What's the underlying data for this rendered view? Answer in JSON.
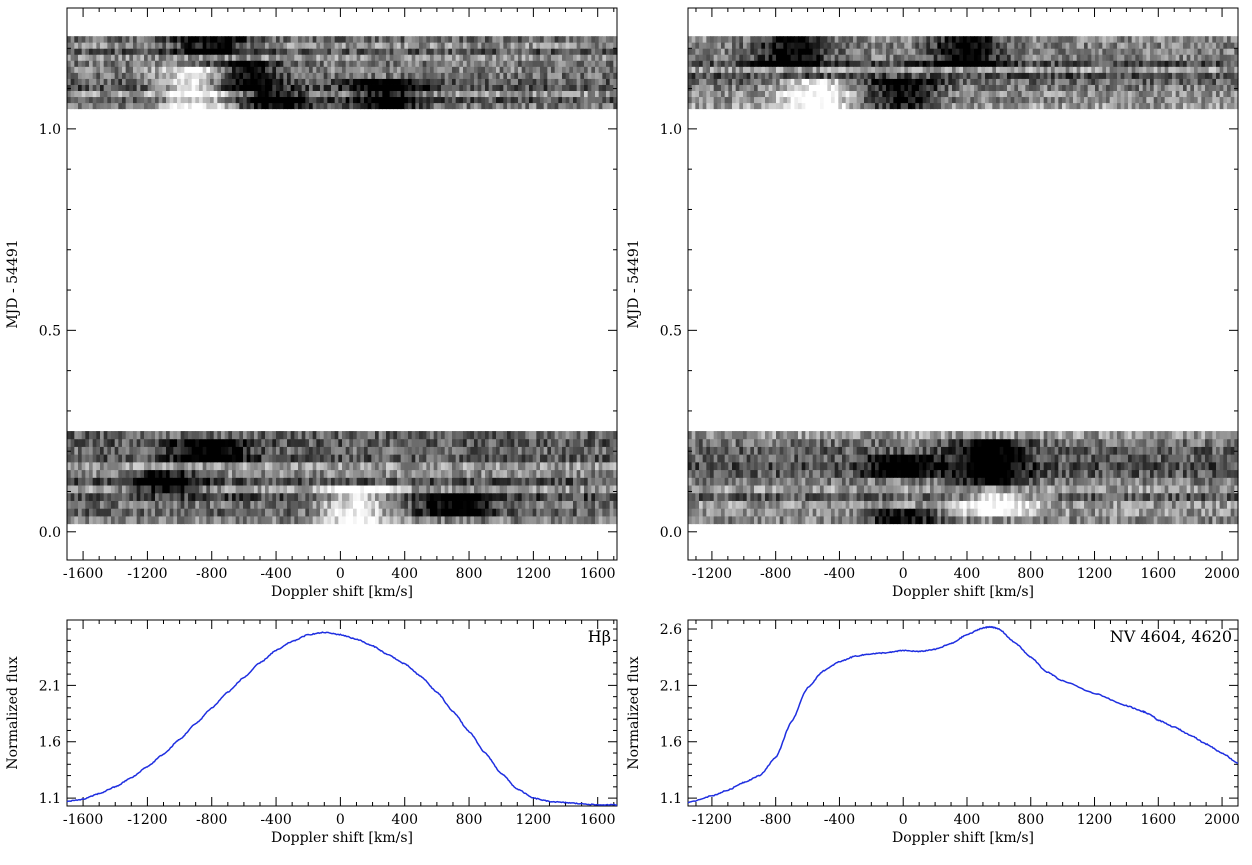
{
  "chart_data": [
    {
      "type": "heatmap",
      "panel": "top-left",
      "xlabel": "Doppler shift [km/s]",
      "ylabel": "MJD - 54491",
      "xlim": [
        -1700,
        1720
      ],
      "ylim": [
        -0.07,
        1.3
      ],
      "x_ticks": [
        -1600,
        -1200,
        -800,
        -400,
        0,
        400,
        800,
        1200,
        1600
      ],
      "x_tick_labels": [
        "-1600",
        "-1200",
        "-800",
        "-400",
        "0",
        "400",
        "800",
        "1200",
        "1600"
      ],
      "y_ticks": [
        0.0,
        0.5,
        1.0
      ],
      "y_tick_labels": [
        "0.0",
        "0.5",
        "1.0"
      ],
      "colormap": "grayscale (white = bright, black = dark)",
      "observation_blocks": [
        [
          0.02,
          0.25
        ],
        [
          1.05,
          1.23
        ]
      ],
      "features": [
        {
          "block": 0,
          "row_range": [
            0.17,
            0.23
          ],
          "x_center": -800,
          "tone": "dark"
        },
        {
          "block": 0,
          "row_range": [
            0.1,
            0.16
          ],
          "x_center": -1100,
          "tone": "dark"
        },
        {
          "block": 0,
          "row_range": [
            0.02,
            0.12
          ],
          "x_center": 100,
          "tone": "light"
        },
        {
          "block": 0,
          "row_range": [
            0.03,
            0.09
          ],
          "x_center": 700,
          "tone": "dark"
        },
        {
          "block": 1,
          "row_range": [
            1.18,
            1.23
          ],
          "x_center": -800,
          "tone": "dark"
        },
        {
          "block": 1,
          "row_range": [
            1.1,
            1.17
          ],
          "x_center": -600,
          "tone": "dark"
        },
        {
          "block": 1,
          "row_range": [
            1.05,
            1.1
          ],
          "x_center": -400,
          "tone": "dark"
        },
        {
          "block": 1,
          "row_range": [
            1.05,
            1.12
          ],
          "x_center": 300,
          "tone": "dark"
        },
        {
          "block": 1,
          "row_range": [
            1.05,
            1.15
          ],
          "x_center": -900,
          "tone": "light"
        }
      ]
    },
    {
      "type": "heatmap",
      "panel": "top-right",
      "xlabel": "Doppler shift [km/s]",
      "ylabel": "MJD - 54491",
      "xlim": [
        -1350,
        2100
      ],
      "ylim": [
        -0.07,
        1.3
      ],
      "x_ticks": [
        -1200,
        -800,
        -400,
        0,
        400,
        800,
        1200,
        1600,
        2000
      ],
      "x_tick_labels": [
        "-1200",
        "-800",
        "-400",
        "0",
        "400",
        "800",
        "1200",
        "1600",
        "2000"
      ],
      "y_ticks": [
        0.0,
        0.5,
        1.0
      ],
      "y_tick_labels": [
        "0.0",
        "0.5",
        "1.0"
      ],
      "colormap": "grayscale (white = bright, black = dark)",
      "observation_blocks": [
        [
          0.02,
          0.25
        ],
        [
          1.05,
          1.23
        ]
      ],
      "features": [
        {
          "block": 0,
          "row_range": [
            0.14,
            0.19
          ],
          "x_center": 0,
          "tone": "dark"
        },
        {
          "block": 0,
          "row_range": [
            0.02,
            0.06
          ],
          "x_center": 0,
          "tone": "dark"
        },
        {
          "block": 0,
          "row_range": [
            0.03,
            0.1
          ],
          "x_center": 600,
          "tone": "light"
        },
        {
          "block": 0,
          "row_range": [
            0.12,
            0.24
          ],
          "x_center": 550,
          "tone": "dark"
        },
        {
          "block": 1,
          "row_range": [
            1.15,
            1.23
          ],
          "x_center": -700,
          "tone": "dark"
        },
        {
          "block": 1,
          "row_range": [
            1.15,
            1.23
          ],
          "x_center": 400,
          "tone": "dark"
        },
        {
          "block": 1,
          "row_range": [
            1.05,
            1.12
          ],
          "x_center": -550,
          "tone": "light"
        },
        {
          "block": 1,
          "row_range": [
            1.05,
            1.12
          ],
          "x_center": 0,
          "tone": "dark"
        }
      ]
    },
    {
      "type": "line",
      "panel": "bottom-left",
      "label": "Hβ",
      "xlabel": "Doppler shift [km/s]",
      "ylabel": "Normalized flux",
      "xlim": [
        -1700,
        1720
      ],
      "ylim": [
        1.03,
        2.68
      ],
      "x_ticks": [
        -1600,
        -1200,
        -800,
        -400,
        0,
        400,
        800,
        1200,
        1600
      ],
      "x_tick_labels": [
        "-1600",
        "-1200",
        "-800",
        "-400",
        "0",
        "400",
        "800",
        "1200",
        "1600"
      ],
      "y_ticks": [
        1.1,
        1.6,
        2.1
      ],
      "y_tick_labels": [
        "1.1",
        "1.6",
        "2.1"
      ],
      "color": "#1f2fe0",
      "x": [
        -1700,
        -1600,
        -1500,
        -1400,
        -1300,
        -1200,
        -1100,
        -1000,
        -900,
        -800,
        -700,
        -600,
        -500,
        -400,
        -300,
        -200,
        -100,
        0,
        100,
        200,
        300,
        400,
        500,
        600,
        700,
        800,
        900,
        1000,
        1100,
        1200,
        1300,
        1400,
        1500,
        1600,
        1720
      ],
      "y": [
        1.07,
        1.09,
        1.14,
        1.2,
        1.28,
        1.38,
        1.49,
        1.62,
        1.76,
        1.9,
        2.04,
        2.17,
        2.3,
        2.41,
        2.49,
        2.55,
        2.57,
        2.55,
        2.51,
        2.45,
        2.37,
        2.29,
        2.18,
        2.04,
        1.87,
        1.69,
        1.5,
        1.32,
        1.18,
        1.1,
        1.07,
        1.06,
        1.05,
        1.04,
        1.04
      ]
    },
    {
      "type": "line",
      "panel": "bottom-right",
      "label": "NV 4604, 4620",
      "xlabel": "Doppler shift [km/s]",
      "ylabel": "Normalized flux",
      "xlim": [
        -1350,
        2100
      ],
      "ylim": [
        1.03,
        2.68
      ],
      "x_ticks": [
        -1200,
        -800,
        -400,
        0,
        400,
        800,
        1200,
        1600,
        2000
      ],
      "x_tick_labels": [
        "-1200",
        "-800",
        "-400",
        "0",
        "400",
        "800",
        "1200",
        "1600",
        "2000"
      ],
      "y_ticks": [
        1.1,
        1.6,
        2.1,
        2.6
      ],
      "y_tick_labels": [
        "1.1",
        "1.6",
        "2.1",
        "2.6"
      ],
      "color": "#1f2fe0",
      "x": [
        -1350,
        -1200,
        -1100,
        -1000,
        -900,
        -800,
        -700,
        -600,
        -500,
        -400,
        -300,
        -200,
        -100,
        0,
        100,
        200,
        300,
        400,
        500,
        550,
        600,
        700,
        800,
        900,
        1000,
        1200,
        1400,
        1500,
        1550,
        1600,
        1700,
        1800,
        1900,
        2000,
        2100
      ],
      "y": [
        1.06,
        1.12,
        1.17,
        1.24,
        1.3,
        1.46,
        1.78,
        2.08,
        2.23,
        2.31,
        2.36,
        2.38,
        2.39,
        2.41,
        2.4,
        2.42,
        2.47,
        2.55,
        2.61,
        2.62,
        2.6,
        2.48,
        2.35,
        2.22,
        2.14,
        2.03,
        1.92,
        1.87,
        1.84,
        1.79,
        1.73,
        1.66,
        1.58,
        1.5,
        1.41
      ]
    }
  ]
}
